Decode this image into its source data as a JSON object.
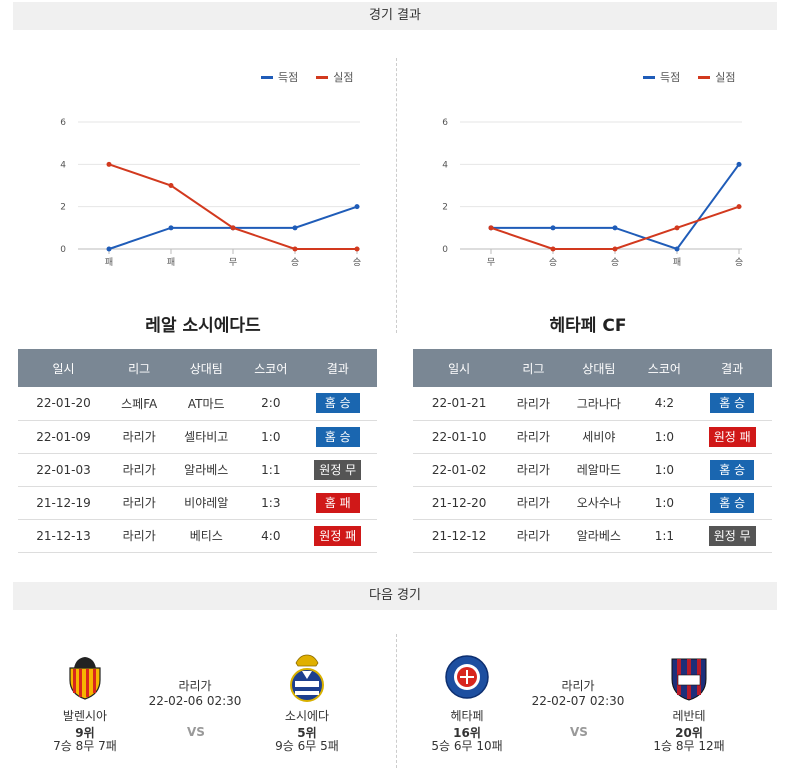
{
  "sections": {
    "results_title": "경기 결과",
    "next_title": "다음 경기"
  },
  "legend": {
    "scored": "득점",
    "conceded": "실점",
    "scored_color": "#1f5cb8",
    "conceded_color": "#d2391e"
  },
  "charts": [
    {
      "type": "line",
      "y_ticks": [
        "6",
        "4",
        "2",
        "0"
      ],
      "ylim": [
        0,
        6
      ],
      "categories": [
        "패",
        "패",
        "무",
        "승",
        "승"
      ],
      "series": [
        {
          "name": "득점",
          "values": [
            0,
            1,
            1,
            1,
            2
          ]
        },
        {
          "name": "실점",
          "values": [
            4,
            3,
            1,
            0,
            0
          ]
        }
      ]
    },
    {
      "type": "line",
      "y_ticks": [
        "6",
        "4",
        "2",
        "0"
      ],
      "ylim": [
        0,
        6
      ],
      "categories": [
        "무",
        "승",
        "승",
        "패",
        "승"
      ],
      "series": [
        {
          "name": "득점",
          "values": [
            1,
            1,
            1,
            0,
            4
          ]
        },
        {
          "name": "실점",
          "values": [
            1,
            0,
            0,
            1,
            2
          ]
        }
      ]
    }
  ],
  "teams": [
    {
      "name": "레알 소시에다드",
      "headers": [
        "일시",
        "리그",
        "상대팀",
        "스코어",
        "결과"
      ],
      "rows": [
        {
          "date": "22-01-20",
          "league": "스페FA",
          "opponent": "AT마드",
          "score": "2:0",
          "result": "홈 승",
          "kind": "win"
        },
        {
          "date": "22-01-09",
          "league": "라리가",
          "opponent": "셀타비고",
          "score": "1:0",
          "result": "홈 승",
          "kind": "win"
        },
        {
          "date": "22-01-03",
          "league": "라리가",
          "opponent": "알라베스",
          "score": "1:1",
          "result": "원정 무",
          "kind": "draw"
        },
        {
          "date": "21-12-19",
          "league": "라리가",
          "opponent": "비야레알",
          "score": "1:3",
          "result": "홈 패",
          "kind": "loss"
        },
        {
          "date": "21-12-13",
          "league": "라리가",
          "opponent": "베티스",
          "score": "4:0",
          "result": "원정 패",
          "kind": "loss"
        }
      ]
    },
    {
      "name": "헤타페 CF",
      "headers": [
        "일시",
        "리그",
        "상대팀",
        "스코어",
        "결과"
      ],
      "rows": [
        {
          "date": "22-01-21",
          "league": "라리가",
          "opponent": "그라나다",
          "score": "4:2",
          "result": "홈 승",
          "kind": "win"
        },
        {
          "date": "22-01-10",
          "league": "라리가",
          "opponent": "세비야",
          "score": "1:0",
          "result": "원정 패",
          "kind": "loss"
        },
        {
          "date": "22-01-02",
          "league": "라리가",
          "opponent": "레알마드",
          "score": "1:0",
          "result": "홈 승",
          "kind": "win"
        },
        {
          "date": "21-12-20",
          "league": "라리가",
          "opponent": "오사수나",
          "score": "1:0",
          "result": "홈 승",
          "kind": "win"
        },
        {
          "date": "21-12-12",
          "league": "라리가",
          "opponent": "알라베스",
          "score": "1:1",
          "result": "원정 무",
          "kind": "draw"
        }
      ]
    }
  ],
  "next_matches": [
    {
      "league": "라리가",
      "datetime": "22-02-06 02:30",
      "vs": "VS",
      "home": {
        "name": "발렌시아",
        "rank": "9위",
        "record": "7승 8무 7패",
        "crest": "valencia-crest-icon"
      },
      "away": {
        "name": "소시에다",
        "rank": "5위",
        "record": "9승 6무 5패",
        "crest": "real-sociedad-crest-icon"
      }
    },
    {
      "league": "라리가",
      "datetime": "22-02-07 02:30",
      "vs": "VS",
      "home": {
        "name": "헤타페",
        "rank": "16위",
        "record": "5승 6무 10패",
        "crest": "getafe-crest-icon"
      },
      "away": {
        "name": "레반테",
        "rank": "20위",
        "record": "1승 8무 12패",
        "crest": "levante-crest-icon"
      }
    }
  ]
}
